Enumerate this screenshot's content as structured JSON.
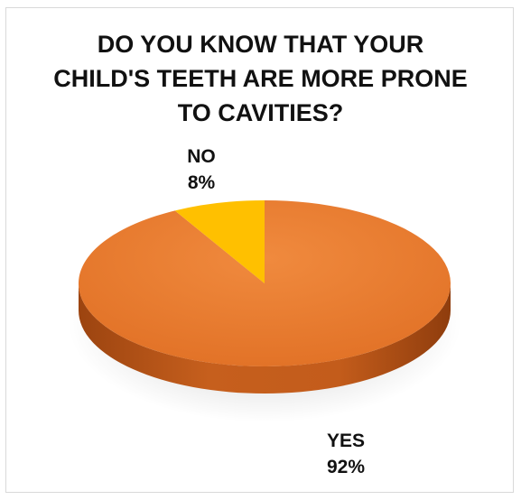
{
  "chart_data": {
    "type": "pie",
    "title": [
      "DO YOU KNOW THAT YOUR",
      "CHILD'S TEETH ARE MORE PRONE",
      "TO CAVITIES?"
    ],
    "categories": [
      "NO",
      "YES"
    ],
    "values": [
      8,
      92
    ],
    "value_labels": [
      "8%",
      "92%"
    ],
    "colors": [
      "#FFC000",
      "#ED7D31"
    ],
    "legend": "none",
    "style": "3d"
  }
}
